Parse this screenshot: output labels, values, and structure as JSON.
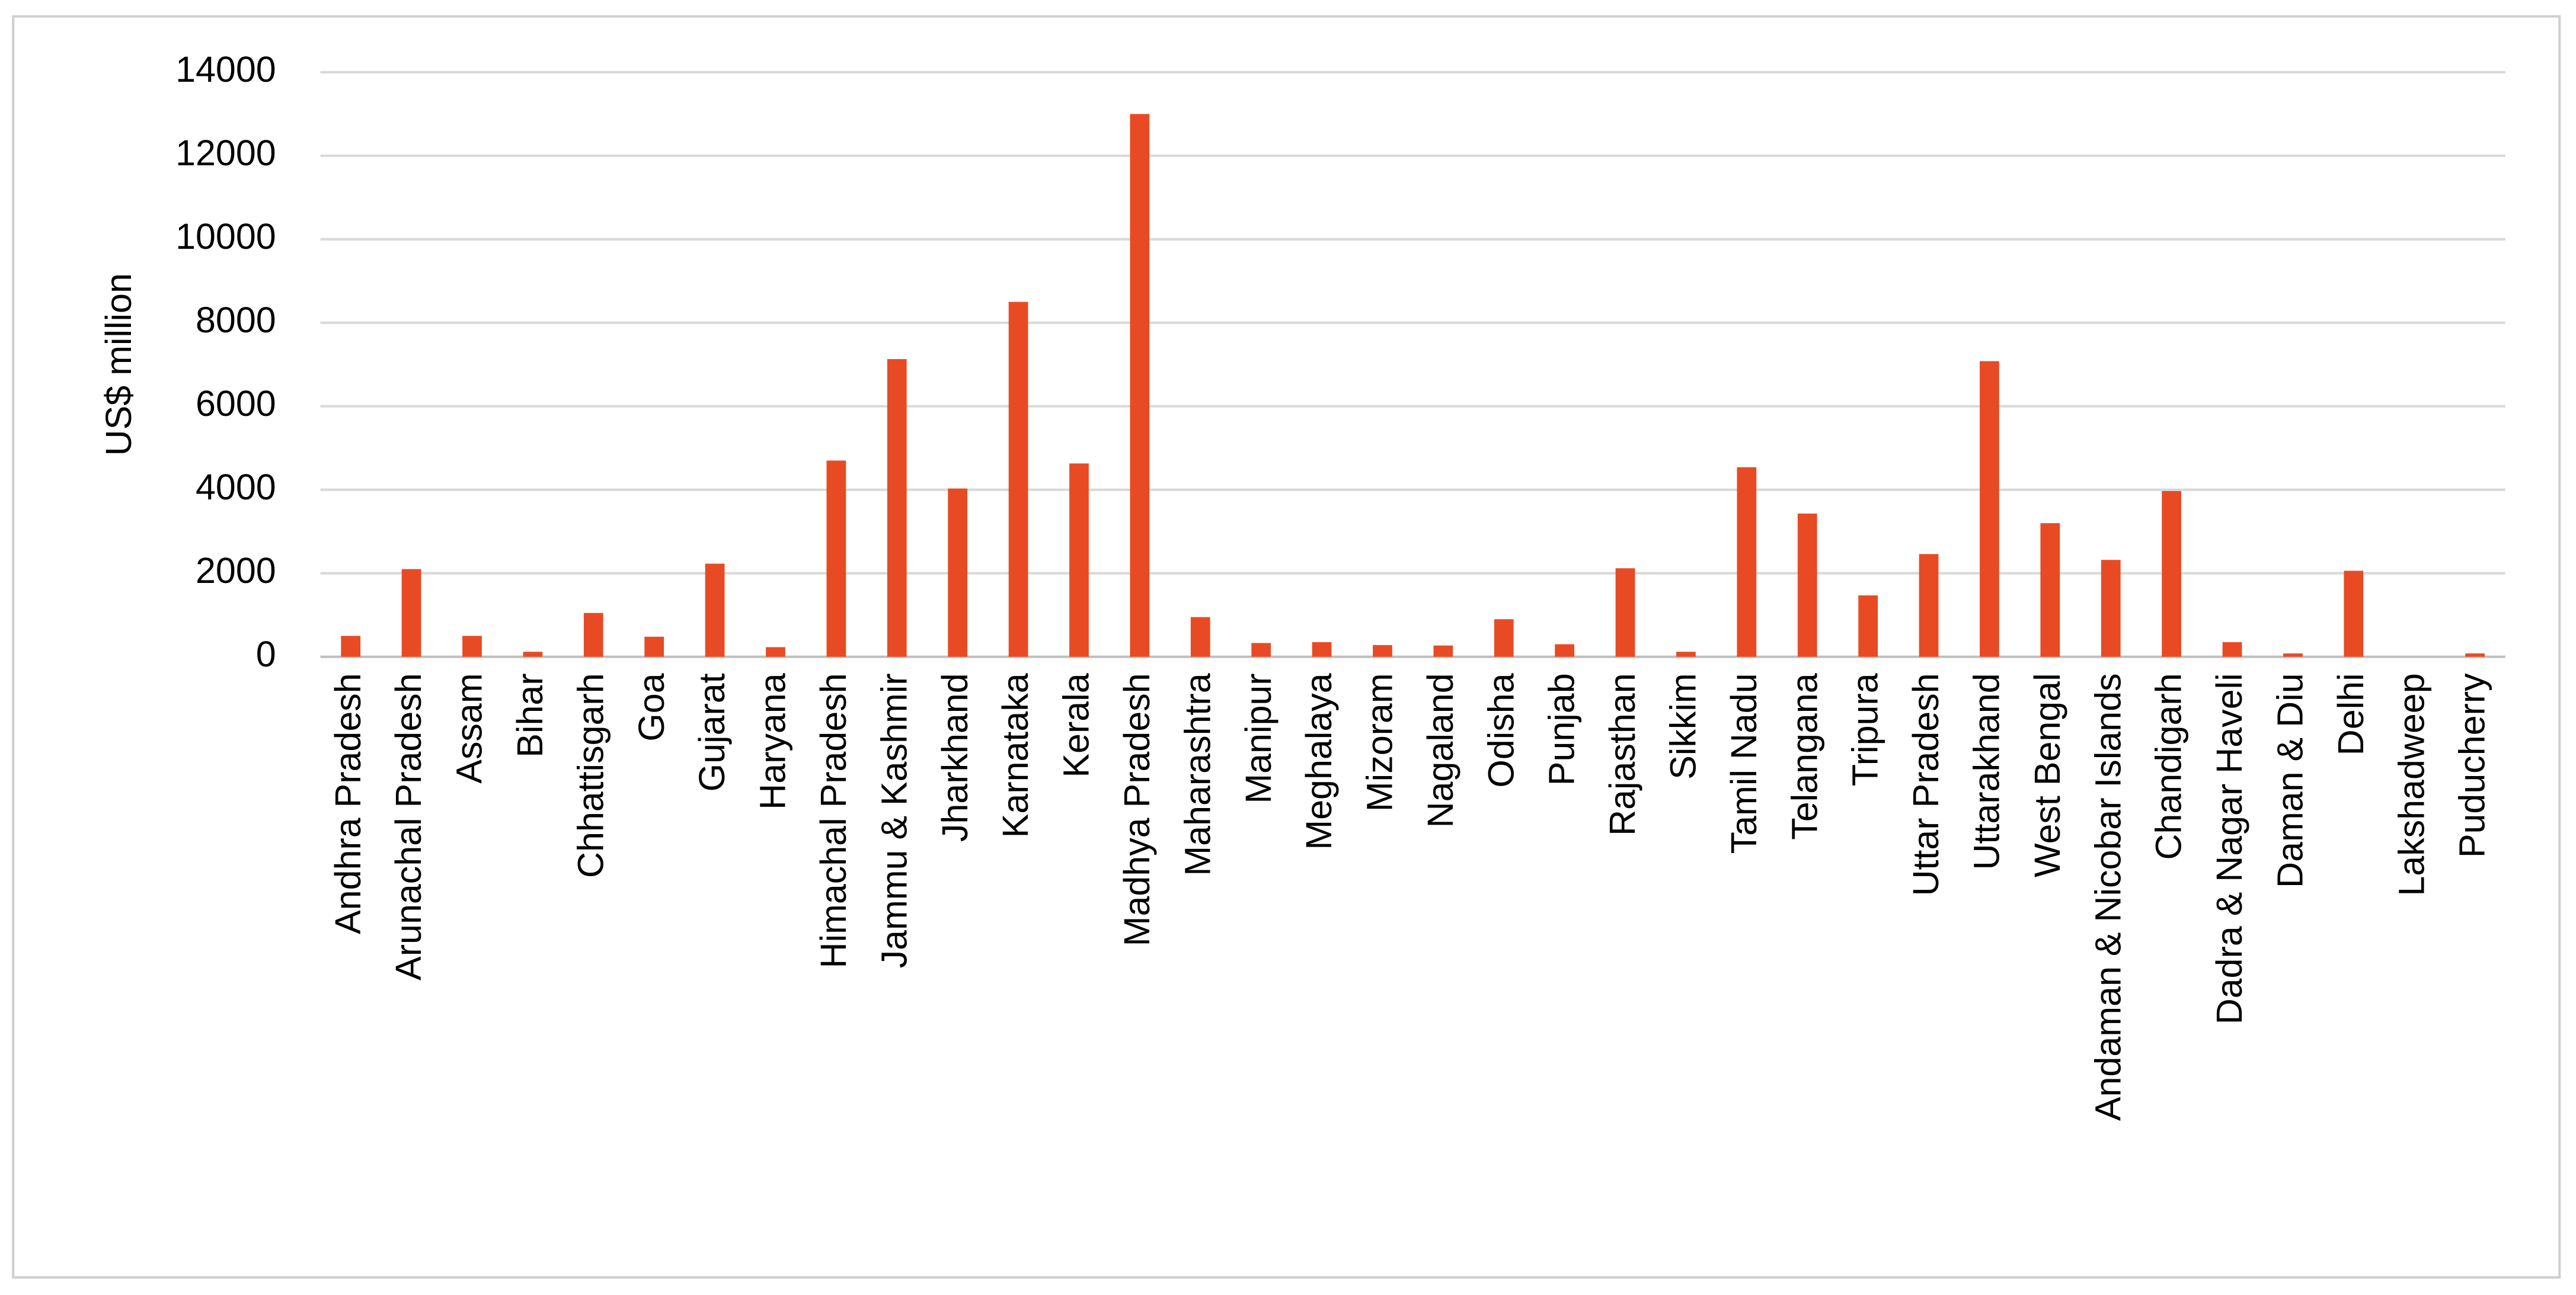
{
  "chart_data": {
    "type": "bar",
    "y_axis_label": "US$ million",
    "categories": [
      "Andhra Pradesh",
      "Arunachal Pradesh",
      "Assam",
      "Bihar",
      "Chhattisgarh",
      "Goa",
      "Gujarat",
      "Haryana",
      "Himachal Pradesh",
      "Jammu & Kashmir",
      "Jharkhand",
      "Karnataka",
      "Kerala",
      "Madhya Pradesh",
      "Maharashtra",
      "Manipur",
      "Meghalaya",
      "Mizoram",
      "Nagaland",
      "Odisha",
      "Punjab",
      "Rajasthan",
      "Sikkim",
      "Tamil Nadu",
      "Telangana",
      "Tripura",
      "Uttar Pradesh",
      "Uttarakhand",
      "West Bengal",
      "Andaman & Nicobar Islands",
      "Chandigarh",
      "Dadra & Nagar Haveli",
      "Daman & Diu",
      "Delhi",
      "Lakshadweep",
      "Puducherry"
    ],
    "values": [
      500,
      2100,
      500,
      120,
      1050,
      480,
      2230,
      230,
      4700,
      7130,
      4030,
      8500,
      4630,
      13000,
      950,
      330,
      350,
      280,
      270,
      900,
      300,
      2120,
      120,
      4540,
      3430,
      1470,
      2460,
      7080,
      3200,
      2320,
      3970,
      350,
      80,
      2060,
      0,
      80
    ],
    "color": "#e84b24",
    "ylim": [
      0,
      14000
    ],
    "yticks": [
      0,
      2000,
      4000,
      6000,
      8000,
      10000,
      12000,
      14000
    ],
    "grid": true
  }
}
